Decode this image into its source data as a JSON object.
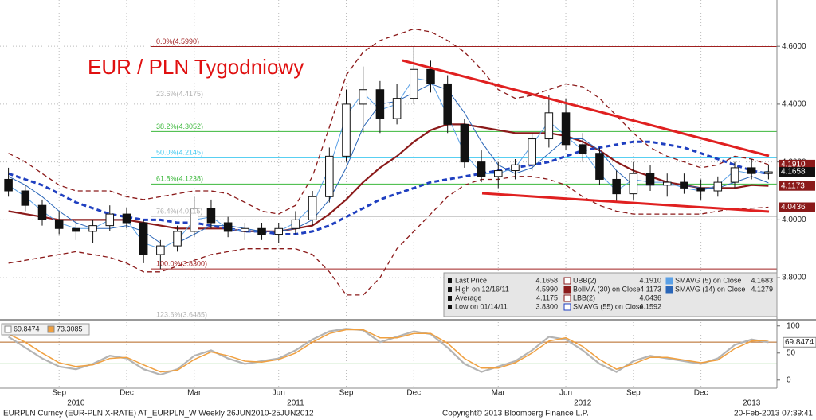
{
  "chart_data": {
    "type": "candlestick",
    "title": "EUR / PLN Tygodniowy",
    "categories": [
      null,
      null,
      null,
      "Sep",
      null,
      null,
      null,
      "Dec",
      null,
      null,
      null,
      "Mar",
      null,
      null,
      null,
      null,
      "Jun",
      null,
      null,
      null,
      "Sep",
      null,
      null,
      null,
      "Dec",
      null,
      null,
      null,
      null,
      "Mar",
      null,
      null,
      null,
      "Jun",
      null,
      null,
      null,
      "Sep",
      null,
      null,
      null,
      "Dec",
      null,
      null,
      null,
      null
    ],
    "year_labels": [
      null,
      null,
      null,
      null,
      "2010",
      null,
      null,
      null,
      null,
      null,
      null,
      null,
      null,
      null,
      null,
      null,
      null,
      "2011",
      null,
      null,
      null,
      null,
      null,
      null,
      null,
      null,
      null,
      null,
      null,
      null,
      null,
      null,
      null,
      null,
      "2012",
      null,
      null,
      null,
      null,
      null,
      null,
      null,
      null,
      null,
      "2013",
      null
    ],
    "ohlc": [
      [
        4.14,
        4.18,
        4.08,
        4.1
      ],
      [
        4.1,
        4.12,
        4.03,
        4.05
      ],
      [
        4.05,
        4.07,
        3.98,
        4.0
      ],
      [
        4.0,
        4.03,
        3.95,
        3.97
      ],
      [
        3.97,
        4.0,
        3.93,
        3.96
      ],
      [
        3.96,
        4.0,
        3.92,
        3.98
      ],
      [
        3.98,
        4.05,
        3.96,
        4.02
      ],
      [
        4.02,
        4.04,
        3.97,
        3.99
      ],
      [
        3.99,
        4.0,
        3.85,
        3.88
      ],
      [
        3.88,
        3.93,
        3.83,
        3.91
      ],
      [
        3.91,
        3.98,
        3.89,
        3.96
      ],
      [
        3.96,
        4.08,
        3.94,
        4.04
      ],
      [
        4.04,
        4.07,
        3.97,
        3.99
      ],
      [
        3.99,
        4.01,
        3.94,
        3.96
      ],
      [
        3.96,
        3.99,
        3.93,
        3.97
      ],
      [
        3.97,
        3.99,
        3.93,
        3.95
      ],
      [
        3.95,
        3.99,
        3.92,
        3.97
      ],
      [
        3.97,
        4.03,
        3.95,
        4.0
      ],
      [
        4.0,
        4.1,
        3.98,
        4.08
      ],
      [
        4.08,
        4.25,
        4.06,
        4.22
      ],
      [
        4.22,
        4.45,
        4.2,
        4.4
      ],
      [
        4.4,
        4.53,
        4.3,
        4.45
      ],
      [
        4.45,
        4.48,
        4.3,
        4.35
      ],
      [
        4.35,
        4.47,
        4.33,
        4.42
      ],
      [
        4.42,
        4.599,
        4.4,
        4.52
      ],
      [
        4.52,
        4.55,
        4.44,
        4.47
      ],
      [
        4.47,
        4.5,
        4.3,
        4.33
      ],
      [
        4.33,
        4.35,
        4.18,
        4.2
      ],
      [
        4.2,
        4.24,
        4.13,
        4.15
      ],
      [
        4.15,
        4.2,
        4.11,
        4.17
      ],
      [
        4.17,
        4.21,
        4.14,
        4.19
      ],
      [
        4.19,
        4.3,
        4.17,
        4.28
      ],
      [
        4.28,
        4.43,
        4.25,
        4.37
      ],
      [
        4.37,
        4.42,
        4.24,
        4.26
      ],
      [
        4.26,
        4.3,
        4.2,
        4.23
      ],
      [
        4.23,
        4.25,
        4.12,
        4.14
      ],
      [
        4.14,
        4.17,
        4.06,
        4.09
      ],
      [
        4.09,
        4.2,
        4.07,
        4.16
      ],
      [
        4.16,
        4.19,
        4.1,
        4.12
      ],
      [
        4.12,
        4.16,
        4.08,
        4.13
      ],
      [
        4.13,
        4.16,
        4.09,
        4.11
      ],
      [
        4.11,
        4.14,
        4.07,
        4.1
      ],
      [
        4.1,
        4.15,
        4.08,
        4.13
      ],
      [
        4.13,
        4.2,
        4.11,
        4.18
      ],
      [
        4.18,
        4.21,
        4.14,
        4.16
      ],
      [
        4.16,
        4.19,
        4.14,
        4.1658
      ]
    ],
    "up_color": "#ffffff",
    "down_color": "#111111",
    "price_legend": [
      {
        "name": "Last Price",
        "value": "4.1658"
      },
      {
        "name": "High on 12/16/11",
        "value": "4.5990"
      },
      {
        "name": "Average",
        "value": "4.1175"
      },
      {
        "name": "Low on 01/14/11",
        "value": "3.8300"
      }
    ],
    "series": [
      {
        "name": "UBB(2)",
        "legend_value": "4.1910",
        "color": "#8b1a1a",
        "style": "dashed",
        "width": 1.3,
        "tag": true,
        "values": [
          4.23,
          4.2,
          4.16,
          4.12,
          4.1,
          4.1,
          4.1,
          4.08,
          4.07,
          4.08,
          4.09,
          4.1,
          4.1,
          4.09,
          4.06,
          4.03,
          4.02,
          4.05,
          4.15,
          4.32,
          4.5,
          4.58,
          4.62,
          4.64,
          4.66,
          4.65,
          4.62,
          4.58,
          4.52,
          4.45,
          4.42,
          4.43,
          4.45,
          4.47,
          4.46,
          4.42,
          4.36,
          4.3,
          4.25,
          4.22,
          4.2,
          4.18,
          4.19,
          4.22,
          4.21,
          4.191
        ]
      },
      {
        "name": "BollMA (30) on Close",
        "legend_value": "4.1173",
        "color": "#8b1a1a",
        "style": "solid",
        "width": 2.2,
        "tag": true,
        "values": [
          4.03,
          4.02,
          4.01,
          4.0,
          4.0,
          4.0,
          4.0,
          4.0,
          3.99,
          3.98,
          3.97,
          3.97,
          3.97,
          3.97,
          3.96,
          3.96,
          3.96,
          3.97,
          3.98,
          4.02,
          4.07,
          4.13,
          4.18,
          4.22,
          4.27,
          4.31,
          4.33,
          4.33,
          4.32,
          4.31,
          4.3,
          4.3,
          4.3,
          4.29,
          4.27,
          4.24,
          4.2,
          4.17,
          4.15,
          4.13,
          4.12,
          4.11,
          4.11,
          4.11,
          4.12,
          4.1173
        ]
      },
      {
        "name": "LBB(2)",
        "legend_value": "4.0436",
        "color": "#8b1a1a",
        "style": "dashed",
        "width": 1.3,
        "tag": true,
        "values": [
          3.85,
          3.86,
          3.87,
          3.88,
          3.89,
          3.88,
          3.87,
          3.85,
          3.82,
          3.82,
          3.84,
          3.86,
          3.88,
          3.89,
          3.9,
          3.9,
          3.9,
          3.9,
          3.88,
          3.82,
          3.74,
          3.74,
          3.8,
          3.9,
          3.96,
          4.02,
          4.08,
          4.12,
          4.14,
          4.14,
          4.15,
          4.15,
          4.14,
          4.12,
          4.08,
          4.05,
          4.03,
          4.02,
          4.02,
          4.02,
          4.02,
          4.02,
          4.03,
          4.04,
          4.04,
          4.0436
        ]
      },
      {
        "name": "SMAVG (55) on Close",
        "legend_value": "4.1592",
        "color": "#1f3fc0",
        "style": "dashed",
        "width": 3,
        "tag": false,
        "values": [
          4.16,
          4.14,
          4.12,
          4.09,
          4.06,
          4.04,
          4.02,
          4.01,
          4.0,
          4.0,
          3.99,
          3.99,
          3.98,
          3.97,
          3.96,
          3.96,
          3.95,
          3.95,
          3.96,
          3.98,
          4.01,
          4.04,
          4.07,
          4.09,
          4.11,
          4.13,
          4.14,
          4.15,
          4.16,
          4.17,
          4.18,
          4.19,
          4.2,
          4.22,
          4.24,
          4.25,
          4.26,
          4.27,
          4.27,
          4.26,
          4.25,
          4.23,
          4.21,
          4.19,
          4.17,
          4.1592
        ]
      },
      {
        "name": "SMAVG (5) on Close",
        "legend_value": "4.1683",
        "color": "#5aa0e6",
        "style": "solid",
        "width": 1,
        "tag": false,
        "values": [
          4.12,
          4.08,
          4.03,
          3.99,
          3.97,
          3.97,
          4.0,
          4.0,
          3.92,
          3.9,
          3.93,
          4.0,
          4.01,
          3.97,
          3.96,
          3.96,
          3.96,
          3.99,
          4.05,
          4.18,
          4.36,
          4.44,
          4.38,
          4.4,
          4.49,
          4.48,
          4.36,
          4.23,
          4.16,
          4.16,
          4.18,
          4.26,
          4.34,
          4.29,
          4.24,
          4.16,
          4.1,
          4.14,
          4.13,
          4.13,
          4.11,
          4.1,
          4.12,
          4.17,
          4.16,
          4.1683
        ]
      },
      {
        "name": "SMAVG (14) on Close",
        "legend_value": "4.1279",
        "color": "#2a66b8",
        "style": "solid",
        "width": 1,
        "tag": false,
        "values": [
          4.15,
          4.12,
          4.08,
          4.03,
          3.99,
          3.97,
          3.97,
          3.98,
          3.96,
          3.92,
          3.92,
          3.95,
          3.98,
          3.98,
          3.97,
          3.96,
          3.96,
          3.97,
          4.0,
          4.07,
          4.18,
          4.32,
          4.4,
          4.41,
          4.44,
          4.47,
          4.45,
          4.37,
          4.27,
          4.19,
          4.16,
          4.18,
          4.23,
          4.28,
          4.28,
          4.24,
          4.17,
          4.12,
          4.12,
          4.12,
          4.12,
          4.11,
          4.11,
          4.13,
          4.15,
          4.1279
        ]
      }
    ],
    "fibonacci": [
      {
        "label": "0.0%(4.5990)",
        "value": 4.599,
        "color": "#a02020"
      },
      {
        "label": "23.6%(4.4175)",
        "value": 4.4175,
        "color": "#b0b0b0"
      },
      {
        "label": "38.2%(4.3052)",
        "value": 4.3052,
        "color": "#3cb83c"
      },
      {
        "label": "50.0%(4.2145)",
        "value": 4.2145,
        "color": "#40c8f0"
      },
      {
        "label": "61.8%(4.1238)",
        "value": 4.1238,
        "color": "#3cb83c"
      },
      {
        "label": "76.4%(4.0115)",
        "value": 4.0115,
        "color": "#b0b0b0"
      },
      {
        "label": "100.0%(3.8300)",
        "value": 3.83,
        "color": "#a02020"
      },
      {
        "label": "123.6%(3.6485)",
        "value": 3.6485,
        "color": "#b0b0b0"
      }
    ],
    "ylim": [
      3.66,
      4.76
    ],
    "yticks": [
      {
        "value": 3.8,
        "label": "3.8000"
      },
      {
        "value": 4.0,
        "label": "4.0000"
      },
      {
        "value": 4.2,
        "label": "4.2000"
      },
      {
        "value": 4.4,
        "label": "4.4000"
      },
      {
        "value": 4.6,
        "label": "4.6000"
      }
    ],
    "grid": true,
    "oscillator": {
      "series": [
        {
          "name": "69.8474",
          "color": "#b4b4b4",
          "width": 2.2,
          "values": [
            80,
            60,
            40,
            25,
            20,
            30,
            45,
            40,
            20,
            10,
            20,
            45,
            55,
            40,
            30,
            35,
            40,
            55,
            75,
            90,
            95,
            92,
            70,
            80,
            90,
            85,
            60,
            30,
            15,
            25,
            35,
            55,
            80,
            75,
            55,
            30,
            15,
            35,
            45,
            40,
            35,
            30,
            40,
            65,
            75,
            69.8474
          ]
        },
        {
          "name": "73.3085",
          "color": "#f0a040",
          "width": 1.5,
          "values": [
            85,
            70,
            50,
            32,
            25,
            28,
            40,
            42,
            28,
            15,
            18,
            38,
            52,
            45,
            35,
            33,
            38,
            50,
            70,
            86,
            93,
            93,
            78,
            78,
            86,
            86,
            68,
            40,
            22,
            22,
            32,
            50,
            72,
            78,
            62,
            38,
            20,
            30,
            42,
            42,
            37,
            32,
            37,
            58,
            72,
            73.3085
          ]
        }
      ],
      "reference_lines": [
        {
          "value": 30,
          "color": "#4caf3c"
        },
        {
          "value": 70,
          "color": "#b5651d"
        }
      ],
      "ylim": [
        -15,
        107
      ],
      "yticks": [
        0,
        50,
        100
      ]
    }
  },
  "footer": {
    "left": "EURPLN Curncy (EUR-PLN X-RATE) AT_EURPLN_W  Weekly 26JUN2010-25JUN2012",
    "center": "Copyright© 2013 Bloomberg Finance L.P.",
    "right": "20-Feb-2013 07:39:41"
  }
}
